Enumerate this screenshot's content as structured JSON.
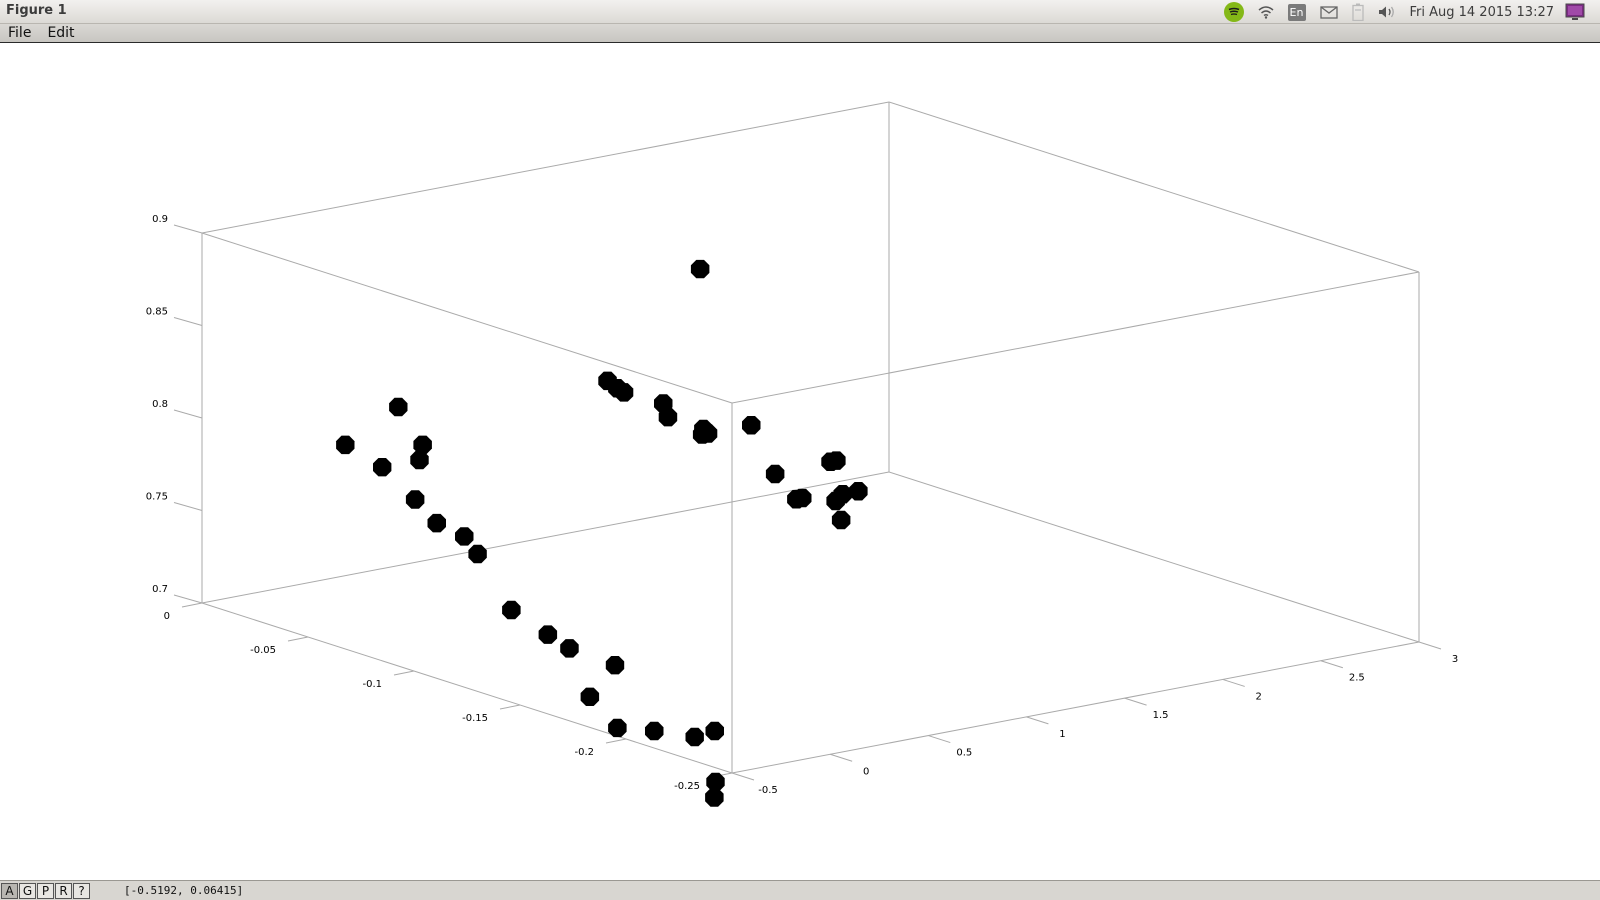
{
  "window": {
    "title": "Figure 1"
  },
  "tray": {
    "language": "En",
    "clock": "Fri Aug 14 2015 13:27",
    "icons": [
      "spotify-icon",
      "wifi-icon",
      "language-indicator",
      "mail-icon",
      "battery-icon",
      "volume-icon",
      "session-icon"
    ]
  },
  "menubar": {
    "file_label": "File",
    "edit_label": "Edit"
  },
  "statusbar": {
    "buttons": [
      "A",
      "G",
      "P",
      "R",
      "?"
    ],
    "coordinates": "[-0.5192, 0.06415]"
  },
  "colors": {
    "marker": "#000000",
    "box": "#aaaaaa",
    "spotify": "#84b817"
  },
  "chart_data": {
    "type": "scatter",
    "dimensions": 3,
    "x_ticks": [
      "-0.5",
      "0",
      "0.5",
      "1",
      "1.5",
      "2",
      "2.5",
      "3"
    ],
    "y_ticks": [
      "0",
      "-0.05",
      "-0.1",
      "-0.15",
      "-0.2",
      "-0.25"
    ],
    "z_ticks": [
      "0.7",
      "0.75",
      "0.8",
      "0.85",
      "0.9"
    ],
    "xlim": [
      -0.5,
      3
    ],
    "ylim": [
      -0.25,
      0
    ],
    "zlim": [
      0.7,
      0.9
    ],
    "grid": false,
    "marker": "filled-circle",
    "points": [
      {
        "x": -0.31,
        "y": -0.05,
        "z": 0.8
      },
      {
        "x": -0.23,
        "y": -0.06,
        "z": 0.79
      },
      {
        "x": -0.17,
        "y": -0.07,
        "z": 0.775
      },
      {
        "x": -0.04,
        "y": -0.05,
        "z": 0.815
      },
      {
        "x": -0.04,
        "y": -0.06,
        "z": 0.79
      },
      {
        "x": -0.06,
        "y": -0.07,
        "z": 0.76
      },
      {
        "x": 0.03,
        "y": -0.055,
        "z": 0.795
      },
      {
        "x": 0.04,
        "y": -0.08,
        "z": 0.745
      },
      {
        "x": 0.08,
        "y": -0.07,
        "z": 0.75
      },
      {
        "x": 0.05,
        "y": -0.095,
        "z": 0.72
      },
      {
        "x": 0.13,
        "y": -0.115,
        "z": 0.705
      },
      {
        "x": 0.29,
        "y": -0.09,
        "z": 0.7
      },
      {
        "x": 0.2,
        "y": -0.13,
        "z": 0.7
      },
      {
        "x": 0.13,
        "y": -0.155,
        "z": 0.675
      },
      {
        "x": 0.32,
        "y": -0.12,
        "z": 0.66
      },
      {
        "x": 0.45,
        "y": -0.095,
        "z": 0.665
      },
      {
        "x": 0.28,
        "y": -0.17,
        "z": 0.65
      },
      {
        "x": 0.49,
        "y": -0.15,
        "z": 0.63
      },
      {
        "x": 0.6,
        "y": -0.14,
        "z": 0.66
      },
      {
        "x": 0.66,
        "y": -0.125,
        "z": 0.65
      },
      {
        "x": 1.35,
        "y": -0.02,
        "z": 0.79
      },
      {
        "x": 1.38,
        "y": -0.025,
        "z": 0.785
      },
      {
        "x": 1.4,
        "y": -0.02,
        "z": 0.785
      },
      {
        "x": 1.55,
        "y": -0.03,
        "z": 0.77
      },
      {
        "x": 1.58,
        "y": -0.025,
        "z": 0.775
      },
      {
        "x": 1.67,
        "y": -0.035,
        "z": 0.76
      },
      {
        "x": 1.7,
        "y": -0.035,
        "z": 0.76
      },
      {
        "x": 1.73,
        "y": -0.03,
        "z": 0.76
      },
      {
        "x": 1.93,
        "y": -0.01,
        "z": 0.835
      },
      {
        "x": 1.92,
        "y": -0.035,
        "z": 0.76
      },
      {
        "x": 1.88,
        "y": -0.05,
        "z": 0.74
      },
      {
        "x": 1.88,
        "y": -0.06,
        "z": 0.73
      },
      {
        "x": 1.91,
        "y": -0.06,
        "z": 0.73
      },
      {
        "x": 2.0,
        "y": -0.07,
        "z": 0.72
      },
      {
        "x": 2.08,
        "y": -0.06,
        "z": 0.725
      },
      {
        "x": 2.17,
        "y": -0.055,
        "z": 0.725
      },
      {
        "x": 2.25,
        "y": -0.055,
        "z": 0.725
      },
      {
        "x": 2.27,
        "y": -0.04,
        "z": 0.735
      },
      {
        "x": 2.3,
        "y": -0.04,
        "z": 0.735
      }
    ]
  }
}
